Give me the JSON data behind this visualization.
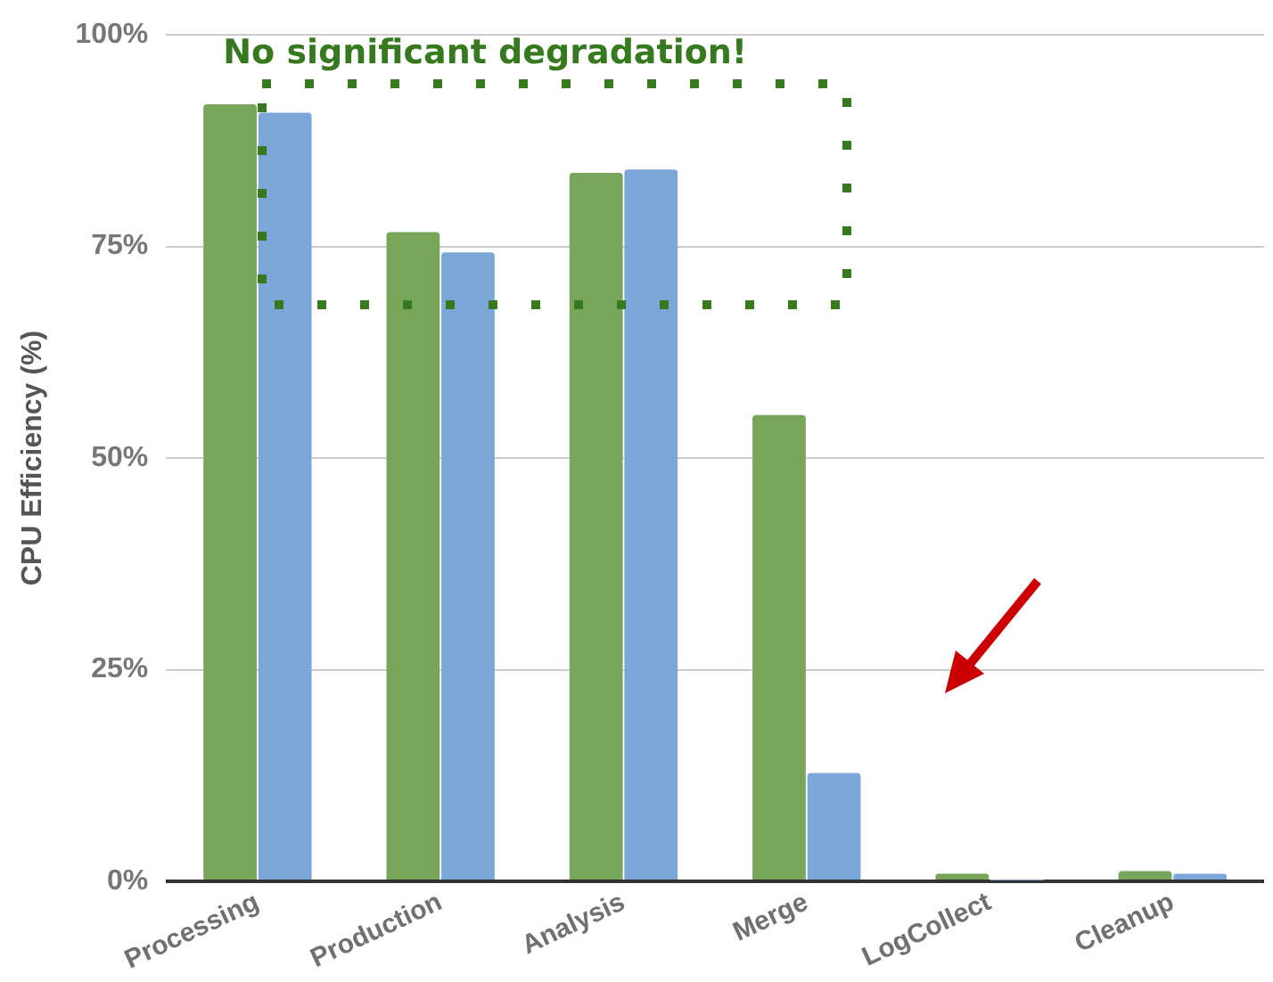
{
  "chart_data": {
    "type": "bar",
    "ylabel": "CPU Efficiency (%)",
    "categories": [
      "Processing",
      "Production",
      "Analysis",
      "Merge",
      "LogCollect",
      "Cleanup"
    ],
    "series": [
      {
        "color": "#77a55a",
        "values": [
          91.8,
          76.7,
          83.7,
          55.1,
          0.9,
          1.2
        ]
      },
      {
        "color": "#7ba7d8",
        "values": [
          90.8,
          74.3,
          84.1,
          12.8,
          0.1,
          0.9
        ]
      }
    ],
    "ylim": [
      0,
      100
    ],
    "yticks": [
      {
        "value": 0,
        "label": "0%"
      },
      {
        "value": 25,
        "label": "25%"
      },
      {
        "value": 50,
        "label": "50%"
      },
      {
        "value": 75,
        "label": "75%"
      },
      {
        "value": 100,
        "label": "100%"
      }
    ],
    "grid": "y",
    "legend": false,
    "annotations": [
      "No significant degradation!"
    ]
  }
}
